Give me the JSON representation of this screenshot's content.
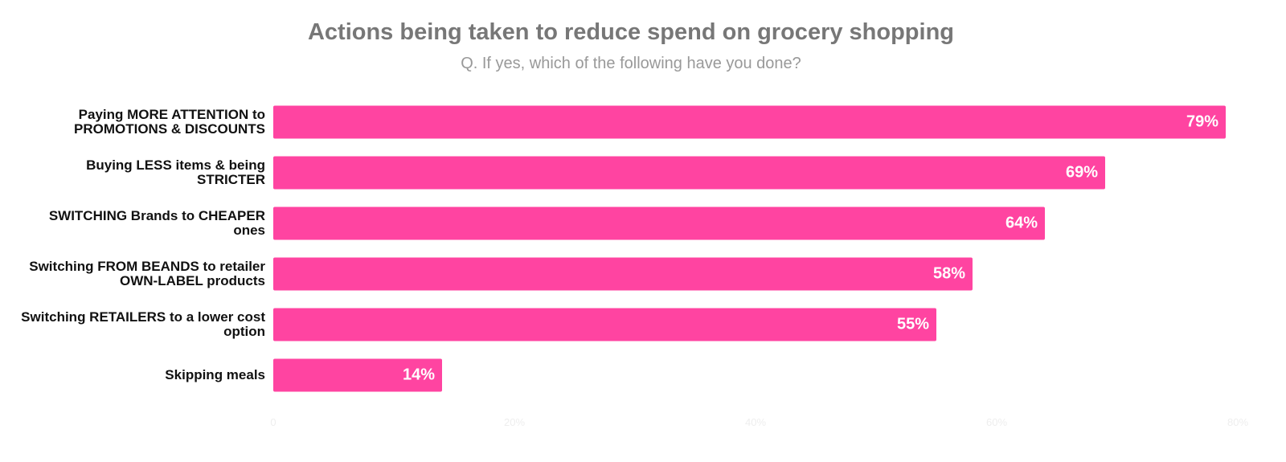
{
  "chart_data": {
    "type": "bar",
    "orientation": "horizontal",
    "title": "Actions being taken to reduce spend on grocery shopping",
    "subtitle": "Q. If yes, which of the following have you done?",
    "categories": [
      "Paying MORE ATTENTION to PROMOTIONS & DISCOUNTS",
      "Buying LESS items & being STRICTER",
      "SWITCHING Brands to CHEAPER ones",
      "Switching FROM BEANDS to retailer OWN-LABEL products",
      "Switching RETAILERS to a lower cost option",
      "Skipping meals"
    ],
    "values": [
      79,
      69,
      64,
      58,
      55,
      14
    ],
    "value_labels": [
      "79%",
      "69%",
      "64%",
      "58%",
      "55%",
      "14%"
    ],
    "color": "#ff44a1",
    "xlim": [
      0,
      80
    ],
    "xticks": [
      0,
      {
        "value": 20,
        "label": "20%"
      },
      {
        "value": 40,
        "label": "40%"
      },
      {
        "value": 60,
        "label": "60%"
      },
      {
        "value": 80,
        "label": "80%"
      }
    ],
    "grid": false
  }
}
